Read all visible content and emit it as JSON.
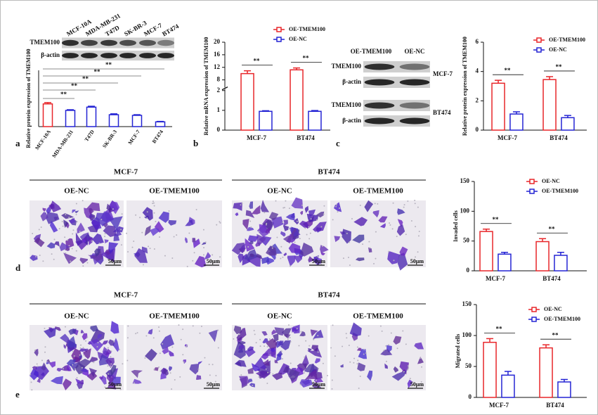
{
  "chart_data": [
    {
      "type": "bar",
      "ylabel": "Relative protein expression of TMEM100",
      "categories": [
        "MCF-10A",
        "MDA-MB-231",
        "T47D",
        "SK-BR-3",
        "MCF-7",
        "BT474"
      ],
      "values": [
        1.05,
        0.75,
        0.9,
        0.55,
        0.52,
        0.22
      ],
      "errors": [
        0.06,
        0.03,
        0.04,
        0.04,
        0.03,
        0.02
      ],
      "colors": [
        "#e8262a",
        "#2424d4",
        "#2424d4",
        "#2424d4",
        "#2424d4",
        "#2424d4"
      ],
      "ylim": [
        0,
        2.6
      ],
      "yticks": [],
      "annotations": [
        "**",
        "**",
        "**",
        "**",
        "**"
      ]
    },
    {
      "type": "bar",
      "ylabel": "Relative mRNA expression of TMEM100",
      "categories": [
        "MCF-7",
        "BT474"
      ],
      "series": [
        {
          "name": "OE-TMEM100",
          "color": "#e8262a",
          "values": [
            10,
            11.2
          ],
          "errors": [
            0.9,
            0.6
          ]
        },
        {
          "name": "OE-NC",
          "color": "#2424d4",
          "values": [
            0.95,
            0.95
          ],
          "errors": [
            0.03,
            0.04
          ]
        }
      ],
      "ylim": [
        0,
        20
      ],
      "ybreak": [
        2,
        6
      ],
      "yticks": [
        0,
        1,
        2,
        8,
        12,
        16,
        20
      ],
      "annotations": [
        "**",
        "**"
      ]
    },
    {
      "type": "bar",
      "ylabel": "Relative protein expression of TMEM100",
      "categories": [
        "MCF-7",
        "BT474"
      ],
      "series": [
        {
          "name": "OE-TMEM100",
          "color": "#e8262a",
          "values": [
            3.2,
            3.45
          ],
          "errors": [
            0.2,
            0.2
          ]
        },
        {
          "name": "OE-NC",
          "color": "#2424d4",
          "values": [
            1.1,
            0.85
          ],
          "errors": [
            0.15,
            0.15
          ]
        }
      ],
      "ylim": [
        0,
        6
      ],
      "yticks": [
        0,
        2,
        4,
        6
      ],
      "annotations": [
        "**",
        "**"
      ]
    },
    {
      "type": "bar",
      "ylabel": "Invaded cells",
      "categories": [
        "MCF-7",
        "BT474"
      ],
      "series": [
        {
          "name": "OE-NC",
          "color": "#e8262a",
          "values": [
            66,
            49
          ],
          "errors": [
            4,
            5
          ]
        },
        {
          "name": "OE-TMEM100",
          "color": "#2424d4",
          "values": [
            28,
            26
          ],
          "errors": [
            3,
            5
          ]
        }
      ],
      "ylim": [
        0,
        150
      ],
      "yticks": [
        0,
        50,
        100,
        150
      ],
      "annotations": [
        "**",
        "**"
      ]
    },
    {
      "type": "bar",
      "ylabel": "Migrated cells",
      "categories": [
        "MCF-7",
        "BT474"
      ],
      "series": [
        {
          "name": "OE-NC",
          "color": "#e8262a",
          "values": [
            89,
            80
          ],
          "errors": [
            6,
            5
          ]
        },
        {
          "name": "OE-TMEM100",
          "color": "#2424d4",
          "values": [
            36,
            25
          ],
          "errors": [
            6,
            4
          ]
        }
      ],
      "ylim": [
        0,
        150
      ],
      "yticks": [
        0,
        50,
        100,
        150
      ],
      "annotations": [
        "**",
        "**"
      ]
    }
  ],
  "panel_labels": [
    "a",
    "b",
    "c",
    "d",
    "e"
  ],
  "blot_a": {
    "lanes": [
      "MCF-10A",
      "MDA-MB-231",
      "T47D",
      "SK-BR-3",
      "MCF-7",
      "BT474"
    ],
    "rows": [
      "TMEM100",
      "β-actin"
    ]
  },
  "blot_c": {
    "lanes": [
      "OE-TMEM100",
      "OE-NC"
    ],
    "groups": [
      {
        "name": "MCF-7",
        "rows": [
          "TMEM100",
          "β-actin"
        ]
      },
      {
        "name": "BT474",
        "rows": [
          "TMEM100",
          "β-actin"
        ]
      }
    ]
  },
  "images_d": {
    "groups": [
      {
        "name": "MCF-7",
        "panels": [
          {
            "label": "OE-NC",
            "scale": "50μm"
          },
          {
            "label": "OE-TMEM100",
            "scale": "50μm"
          }
        ]
      },
      {
        "name": "BT474",
        "panels": [
          {
            "label": "OE-NC",
            "scale": "50μm"
          },
          {
            "label": "OE-TMEM100",
            "scale": "50μm"
          }
        ]
      }
    ]
  },
  "images_e": {
    "groups": [
      {
        "name": "MCF-7",
        "panels": [
          {
            "label": "OE-NC",
            "scale": "50μm"
          },
          {
            "label": "OE-TMEM100",
            "scale": "50μm"
          }
        ]
      },
      {
        "name": "BT474",
        "panels": [
          {
            "label": "OE-NC",
            "scale": "50μm"
          },
          {
            "label": "OE-TMEM100",
            "scale": "50μm"
          }
        ]
      }
    ]
  }
}
